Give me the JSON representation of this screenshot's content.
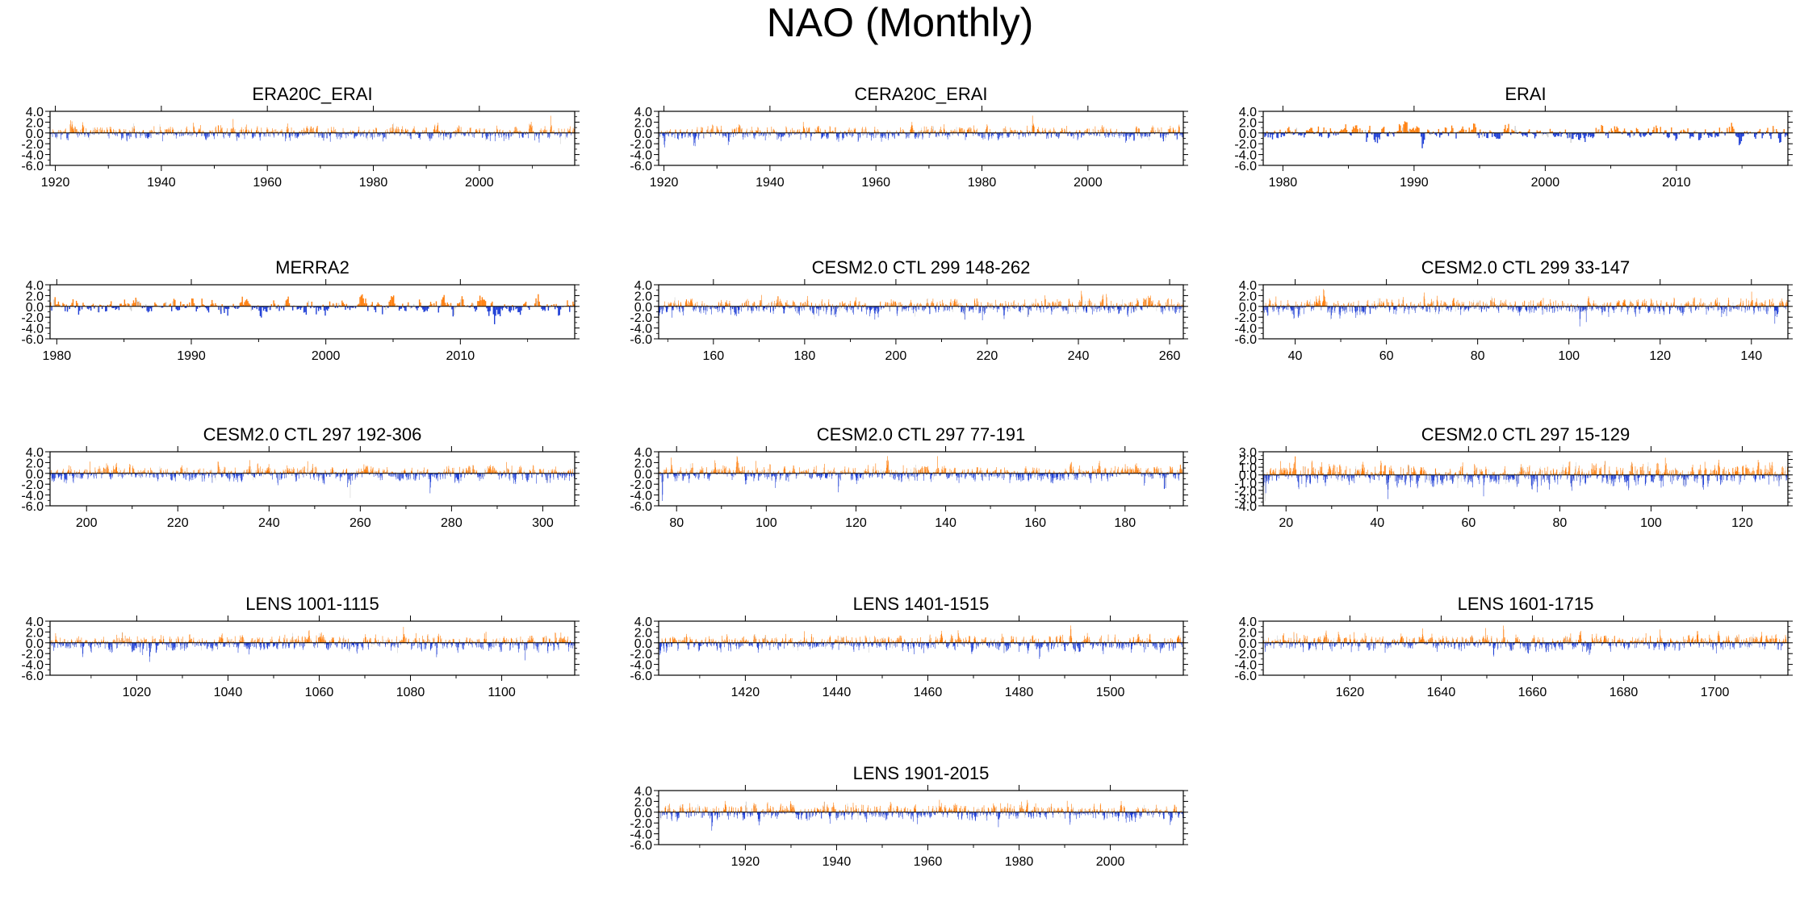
{
  "figure": {
    "title": "NAO (Monthly)"
  },
  "colors": {
    "positive": "#ff7f0e",
    "negative": "#1f3fd6",
    "axis": "#000000",
    "faint": "#cfcfcf"
  },
  "chart_data": [
    {
      "type": "bar",
      "title": "ERA20C_ERAI",
      "ylim": [
        -6,
        4
      ],
      "yticks": [
        4.0,
        2.0,
        0.0,
        -2.0,
        -4.0,
        -6.0
      ],
      "ytick_labels": [
        "4.0",
        "2.0",
        "0.0",
        "-2.0",
        "-4.0",
        "-6.0"
      ],
      "xlim": [
        1919,
        2018
      ],
      "xticks": [
        1920,
        1940,
        1960,
        1980,
        2000
      ],
      "xtick_labels": [
        "1920",
        "1940",
        "1960",
        "1980",
        "2000"
      ],
      "values_per_unit": 12,
      "seed": 11,
      "amp": 0.85
    },
    {
      "type": "bar",
      "title": "CERA20C_ERAI",
      "ylim": [
        -6,
        4
      ],
      "yticks": [
        4.0,
        2.0,
        0.0,
        -2.0,
        -4.0,
        -6.0
      ],
      "ytick_labels": [
        "4.0",
        "2.0",
        "0.0",
        "-2.0",
        "-4.0",
        "-6.0"
      ],
      "xlim": [
        1919,
        2018
      ],
      "xticks": [
        1920,
        1940,
        1960,
        1980,
        2000
      ],
      "xtick_labels": [
        "1920",
        "1940",
        "1960",
        "1980",
        "2000"
      ],
      "values_per_unit": 12,
      "seed": 23,
      "amp": 0.85
    },
    {
      "type": "bar",
      "title": "ERAI",
      "ylim": [
        -6,
        4
      ],
      "yticks": [
        4.0,
        2.0,
        0.0,
        -2.0,
        -4.0,
        -6.0
      ],
      "ytick_labels": [
        "4.0",
        "2.0",
        "0.0",
        "-2.0",
        "-4.0",
        "-6.0"
      ],
      "xlim": [
        1978.5,
        2018.5
      ],
      "xticks": [
        1980,
        1990,
        2000,
        2010
      ],
      "xtick_labels": [
        "1980",
        "1990",
        "2000",
        "2010"
      ],
      "values_per_unit": 12,
      "seed": 37,
      "amp": 0.95
    },
    {
      "type": "bar",
      "title": "MERRA2",
      "ylim": [
        -6,
        4
      ],
      "yticks": [
        4.0,
        2.0,
        0.0,
        -2.0,
        -4.0,
        -6.0
      ],
      "ytick_labels": [
        "4.0",
        "2.0",
        "0.0",
        "-2.0",
        "-4.0",
        "-6.0"
      ],
      "xlim": [
        1979.5,
        2018.5
      ],
      "xticks": [
        1980,
        1990,
        2000,
        2010
      ],
      "xtick_labels": [
        "1980",
        "1990",
        "2000",
        "2010"
      ],
      "values_per_unit": 12,
      "seed": 41,
      "amp": 0.95
    },
    {
      "type": "bar",
      "title": "CESM2.0 CTL 299 148-262",
      "ylim": [
        -6,
        4
      ],
      "yticks": [
        4.0,
        2.0,
        0.0,
        -2.0,
        -4.0,
        -6.0
      ],
      "ytick_labels": [
        "4.0",
        "2.0",
        "0.0",
        "-2.0",
        "-4.0",
        "-6.0"
      ],
      "xlim": [
        148,
        263
      ],
      "xticks": [
        160,
        180,
        200,
        220,
        240,
        260
      ],
      "xtick_labels": [
        "160",
        "180",
        "200",
        "220",
        "240",
        "260"
      ],
      "values_per_unit": 12,
      "seed": 53,
      "amp": 0.95
    },
    {
      "type": "bar",
      "title": "CESM2.0 CTL 299 33-147",
      "ylim": [
        -6,
        4
      ],
      "yticks": [
        4.0,
        2.0,
        0.0,
        -2.0,
        -4.0,
        -6.0
      ],
      "ytick_labels": [
        "4.0",
        "2.0",
        "0.0",
        "-2.0",
        "-4.0",
        "-6.0"
      ],
      "xlim": [
        33,
        148
      ],
      "xticks": [
        40,
        60,
        80,
        100,
        120,
        140
      ],
      "xtick_labels": [
        "40",
        "60",
        "80",
        "100",
        "120",
        "140"
      ],
      "values_per_unit": 12,
      "seed": 67,
      "amp": 0.95
    },
    {
      "type": "bar",
      "title": "CESM2.0 CTL 297 192-306",
      "ylim": [
        -6,
        4
      ],
      "yticks": [
        4.0,
        2.0,
        0.0,
        -2.0,
        -4.0,
        -6.0
      ],
      "ytick_labels": [
        "4.0",
        "2.0",
        "0.0",
        "-2.0",
        "-4.0",
        "-6.0"
      ],
      "xlim": [
        192,
        307
      ],
      "xticks": [
        200,
        220,
        240,
        260,
        280,
        300
      ],
      "xtick_labels": [
        "200",
        "220",
        "240",
        "260",
        "280",
        "300"
      ],
      "values_per_unit": 12,
      "seed": 79,
      "amp": 0.95
    },
    {
      "type": "bar",
      "title": "CESM2.0 CTL 297 77-191",
      "ylim": [
        -6,
        4
      ],
      "yticks": [
        4.0,
        2.0,
        0.0,
        -2.0,
        -4.0,
        -6.0
      ],
      "ytick_labels": [
        "4.0",
        "2.0",
        "0.0",
        "-2.0",
        "-4.0",
        "-6.0"
      ],
      "xlim": [
        76,
        193
      ],
      "xticks": [
        80,
        100,
        120,
        140,
        160,
        180
      ],
      "xtick_labels": [
        "80",
        "100",
        "120",
        "140",
        "160",
        "180"
      ],
      "values_per_unit": 12,
      "seed": 83,
      "amp": 0.95
    },
    {
      "type": "bar",
      "title": "CESM2.0 CTL 297 15-129",
      "ylim": [
        -4,
        3
      ],
      "yticks": [
        3.0,
        2.0,
        1.0,
        0.0,
        -1.0,
        -2.0,
        -3.0,
        -4.0
      ],
      "ytick_labels": [
        "3.0",
        "2.0",
        "1.0",
        "0.0",
        "-1.0",
        "-2.0",
        "-3.0",
        "-4.0"
      ],
      "xlim": [
        15,
        130
      ],
      "xticks": [
        20,
        40,
        60,
        80,
        100,
        120
      ],
      "xtick_labels": [
        "20",
        "40",
        "60",
        "80",
        "100",
        "120"
      ],
      "values_per_unit": 12,
      "seed": 97,
      "amp": 0.95
    },
    {
      "type": "bar",
      "title": "LENS 1001-1115",
      "ylim": [
        -6,
        4
      ],
      "yticks": [
        4.0,
        2.0,
        0.0,
        -2.0,
        -4.0,
        -6.0
      ],
      "ytick_labels": [
        "4.0",
        "2.0",
        "0.0",
        "-2.0",
        "-4.0",
        "-6.0"
      ],
      "xlim": [
        1001,
        1116
      ],
      "xticks": [
        1020,
        1040,
        1060,
        1080,
        1100
      ],
      "xtick_labels": [
        "1020",
        "1040",
        "1060",
        "1080",
        "1100"
      ],
      "values_per_unit": 12,
      "seed": 101,
      "amp": 0.95
    },
    {
      "type": "bar",
      "title": "LENS 1401-1515",
      "ylim": [
        -6,
        4
      ],
      "yticks": [
        4.0,
        2.0,
        0.0,
        -2.0,
        -4.0,
        -6.0
      ],
      "ytick_labels": [
        "4.0",
        "2.0",
        "0.0",
        "-2.0",
        "-4.0",
        "-6.0"
      ],
      "xlim": [
        1401,
        1516
      ],
      "xticks": [
        1420,
        1440,
        1460,
        1480,
        1500
      ],
      "xtick_labels": [
        "1420",
        "1440",
        "1460",
        "1480",
        "1500"
      ],
      "values_per_unit": 12,
      "seed": 113,
      "amp": 0.95
    },
    {
      "type": "bar",
      "title": "LENS 1601-1715",
      "ylim": [
        -6,
        4
      ],
      "yticks": [
        4.0,
        2.0,
        0.0,
        -2.0,
        -4.0,
        -6.0
      ],
      "ytick_labels": [
        "4.0",
        "2.0",
        "0.0",
        "-2.0",
        "-4.0",
        "-6.0"
      ],
      "xlim": [
        1601,
        1716
      ],
      "xticks": [
        1620,
        1640,
        1660,
        1680,
        1700
      ],
      "xtick_labels": [
        "1620",
        "1640",
        "1660",
        "1680",
        "1700"
      ],
      "values_per_unit": 12,
      "seed": 127,
      "amp": 0.95
    },
    {
      "type": "bar",
      "title": "LENS 1901-2015",
      "ylim": [
        -6,
        4
      ],
      "yticks": [
        4.0,
        2.0,
        0.0,
        -2.0,
        -4.0,
        -6.0
      ],
      "ytick_labels": [
        "4.0",
        "2.0",
        "0.0",
        "-2.0",
        "-4.0",
        "-6.0"
      ],
      "xlim": [
        1901,
        2016
      ],
      "xticks": [
        1920,
        1940,
        1960,
        1980,
        2000
      ],
      "xtick_labels": [
        "1920",
        "1940",
        "1960",
        "1980",
        "2000"
      ],
      "values_per_unit": 12,
      "seed": 131,
      "amp": 0.95
    }
  ]
}
